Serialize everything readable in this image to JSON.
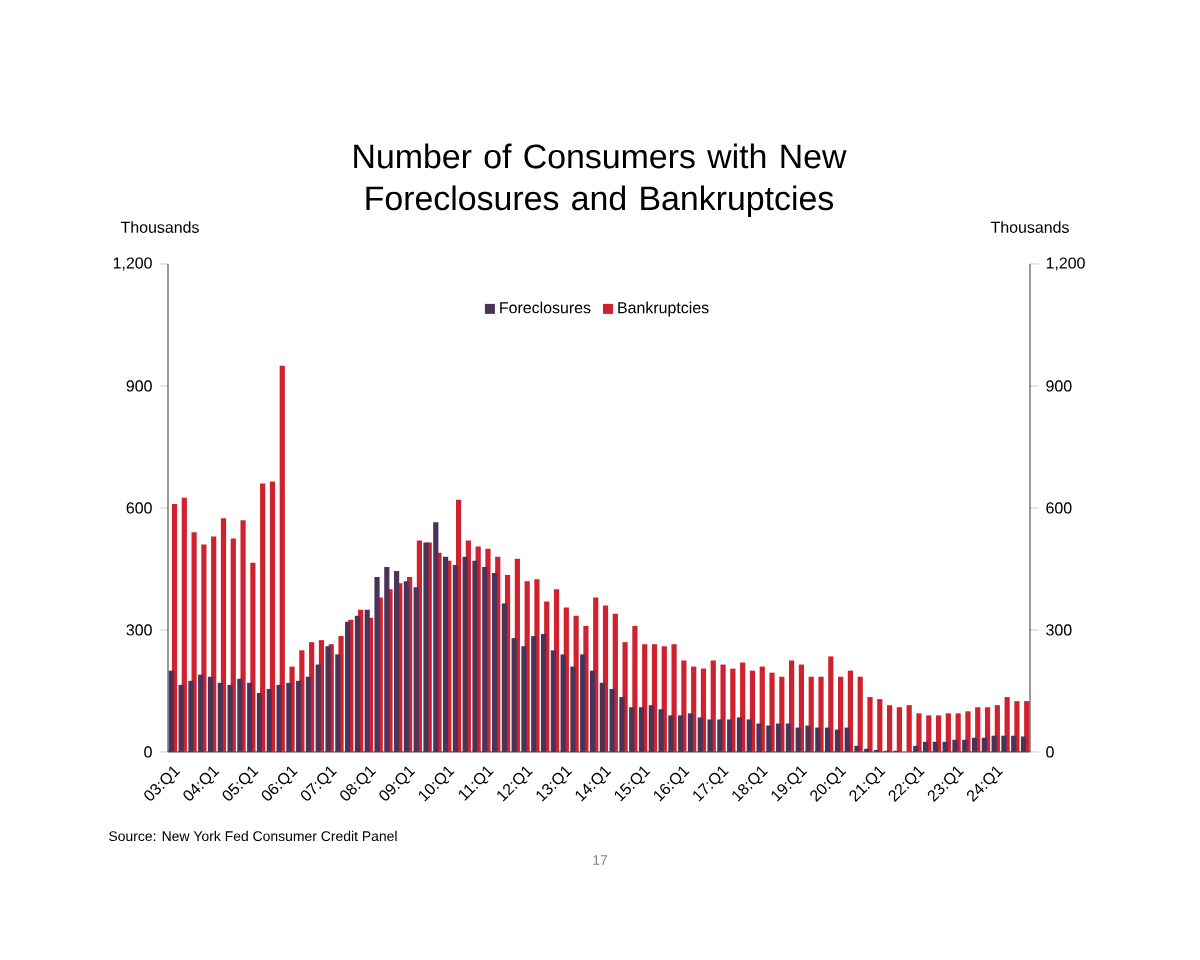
{
  "chart_data": {
    "type": "bar",
    "title": "Number of Consumers with New Foreclosures and Bankruptcies",
    "categories": [
      "03:Q1",
      null,
      null,
      null,
      "04:Q1",
      null,
      null,
      null,
      "05:Q1",
      null,
      null,
      null,
      "06:Q1",
      null,
      null,
      null,
      "07:Q1",
      null,
      null,
      null,
      "08:Q1",
      null,
      null,
      null,
      "09:Q1",
      null,
      null,
      null,
      "10:Q1",
      null,
      null,
      null,
      "11:Q1",
      null,
      null,
      null,
      "12:Q1",
      null,
      null,
      null,
      "13:Q1",
      null,
      null,
      null,
      "14:Q1",
      null,
      null,
      null,
      "15:Q1",
      null,
      null,
      null,
      "16:Q1",
      null,
      null,
      null,
      "17:Q1",
      null,
      null,
      null,
      "18:Q1",
      null,
      null,
      null,
      "19:Q1",
      null,
      null,
      null,
      "20:Q1",
      null,
      null,
      null,
      "21:Q1",
      null,
      null,
      null,
      "22:Q1",
      null,
      null,
      null,
      "23:Q1",
      null,
      null,
      null,
      "24:Q1",
      null,
      null,
      null
    ],
    "series": [
      {
        "name": "Foreclosures",
        "color": "#4a3358",
        "values": [
          200,
          165,
          175,
          190,
          185,
          170,
          165,
          180,
          170,
          145,
          155,
          165,
          170,
          175,
          185,
          215,
          260,
          240,
          320,
          335,
          350,
          430,
          455,
          445,
          420,
          405,
          515,
          565,
          480,
          460,
          480,
          470,
          455,
          440,
          365,
          280,
          260,
          285,
          290,
          250,
          240,
          210,
          240,
          200,
          170,
          155,
          135,
          110,
          110,
          115,
          105,
          90,
          90,
          95,
          85,
          80,
          80,
          80,
          85,
          80,
          70,
          65,
          70,
          70,
          60,
          65,
          60,
          60,
          55,
          60,
          15,
          8,
          5,
          3,
          3,
          null,
          15,
          25,
          25,
          25,
          30,
          30,
          35,
          35,
          40,
          40,
          40,
          38
        ]
      },
      {
        "name": "Bankruptcies",
        "color": "#d0222e",
        "values": [
          610,
          625,
          540,
          510,
          530,
          575,
          525,
          570,
          465,
          660,
          665,
          950,
          210,
          250,
          270,
          275,
          265,
          285,
          325,
          350,
          330,
          380,
          400,
          415,
          430,
          520,
          515,
          490,
          470,
          620,
          520,
          505,
          500,
          480,
          435,
          475,
          420,
          425,
          370,
          400,
          355,
          335,
          310,
          380,
          360,
          340,
          270,
          310,
          265,
          265,
          260,
          265,
          225,
          210,
          205,
          225,
          215,
          205,
          220,
          200,
          210,
          195,
          185,
          225,
          215,
          185,
          185,
          235,
          185,
          200,
          185,
          135,
          130,
          115,
          110,
          115,
          95,
          90,
          90,
          95,
          95,
          100,
          110,
          110,
          115,
          135,
          125,
          125
        ]
      }
    ],
    "ylabel": "Thousands",
    "y2label": "Thousands",
    "ylim": [
      0,
      1200
    ],
    "yticks": [
      {
        "value": 0,
        "label": "0"
      },
      {
        "value": 300,
        "label": "300"
      },
      {
        "value": 600,
        "label": "600"
      },
      {
        "value": 900,
        "label": "900"
      },
      {
        "value": 1200,
        "label": "1,200"
      }
    ],
    "y2lim": [
      0,
      1200
    ],
    "y2ticks": [
      {
        "value": 0,
        "label": "0"
      },
      {
        "value": 300,
        "label": "300"
      },
      {
        "value": 600,
        "label": "600"
      },
      {
        "value": 900,
        "label": "900"
      },
      {
        "value": 1200,
        "label": "1,200"
      }
    ],
    "legend": "top",
    "grid": false,
    "annotations": [
      "Source: New York Fed Consumer Credit Panel",
      "17"
    ]
  }
}
